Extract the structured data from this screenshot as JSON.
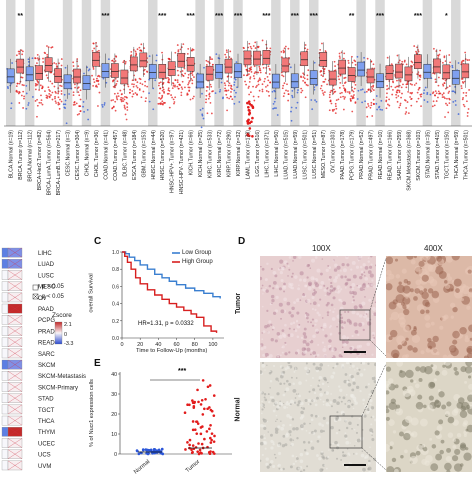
{
  "panelA": {
    "significance_marks": [
      "**",
      "***",
      "***",
      "***",
      "***",
      "***",
      "***",
      "***",
      "***",
      "**",
      "***",
      "***",
      "*"
    ],
    "sample_labels": [
      "BLCA.Normal (n=19)",
      "BRCA.Tumor (n=112)",
      "BRCA.Normal (n=112)",
      "BRCA-Her2.Tumor (n=82)",
      "BRCA-LumA.Tumor (n=564)",
      "BRCA-LumB.Tumor (n=217)",
      "CESC.Normal (n=3)",
      "CESC.Tumor (n=304)",
      "CHOL.Normal (n=9)",
      "CHOL.Tumor (n=36)",
      "COAD.Normal (n=41)",
      "COAD.Tumor (n=457)",
      "DLBC.Tumor (n=48)",
      "ESCA.Tumor (n=184)",
      "GBM.Tumor (n=153)",
      "HNSC.Normal (n=44)",
      "HNSC.Tumor (n=520)",
      "HNSC-HPV+.Tumor (n=97)",
      "HNSC-HPV-.Tumor (n=421)",
      "KICH.Tumor (n=66)",
      "KICH.Normal (n=25)",
      "KIRC.Tumor (n=533)",
      "KIRC.Normal (n=72)",
      "KIRP.Tumor (n=290)",
      "KIRP.Normal (n=32)",
      "LAML.Tumor (n=173)",
      "LGG.Tumor (n=516)",
      "LIHC.Tumor (n=371)",
      "LIHC.Normal (n=50)",
      "LUAD.Tumor (n=515)",
      "LUAD.Normal (n=59)",
      "LUSC.Tumor (n=501)",
      "LUSC.Normal (n=51)",
      "MESO.Tumor (n=87)",
      "OV.Tumor (n=303)",
      "PAAD.Tumor (n=178)",
      "PCPG.Tumor (n=179)",
      "PRAD.Normal (n=52)",
      "PRAD.Tumor (n=497)",
      "READ.Normal (n=10)",
      "READ.Tumor (n=166)",
      "SARC.Tumor (n=259)",
      "SKCM.Metastasis (n=368)",
      "SKCM.Tumor (n=103)",
      "STAD.Normal (n=35)",
      "STAD.Tumor (n=415)",
      "TGCT.Tumor (n=150)",
      "THCA.Normal (n=59)",
      "THCA.Tumor (n=501)"
    ]
  },
  "panelLeft": {
    "cancer_types": [
      "LIHC",
      "LUAD",
      "LUSC",
      "MESO",
      "OV",
      "PAAD",
      "PCPG",
      "PRAD",
      "READ",
      "SARC",
      "SKCM",
      "SKCM-Metastasis",
      "SKCM-Primary",
      "STAD",
      "TGCT",
      "THCA",
      "THYM",
      "UCEC",
      "UCS",
      "UVM"
    ],
    "legend_p_gt": "p > 0.05",
    "legend_p_le": "p < 0.05",
    "legend_title": "Zscore",
    "legend_max": "2.1",
    "legend_zero": "0",
    "legend_min": "-3.3"
  },
  "panelB": {
    "letter": "C",
    "legend_low": "Low Group",
    "legend_high": "High Group",
    "ylabel": "overall Survival",
    "xlabel": "Time to Follow-Up (months)",
    "hr_text": "HR=1.31, p = 0.0332",
    "x_ticks": [
      "0",
      "20",
      "40",
      "60",
      "80",
      "100"
    ],
    "y_ticks": [
      "0.0",
      "0.2",
      "0.4",
      "0.6",
      "0.8",
      "1.0"
    ],
    "colors": {
      "low": "#3a7fd0",
      "high": "#d71f1f"
    }
  },
  "panelE": {
    "letter": "E",
    "ylabel": "% of Nucr1 expression cells",
    "sig": "***",
    "categories": [
      "Normal",
      "Tumor"
    ],
    "y_ticks": [
      "0",
      "10",
      "20",
      "30",
      "40"
    ]
  },
  "panelD": {
    "letter": "D",
    "mag_low": "100X",
    "mag_high": "400X",
    "row_tumor": "Tumor",
    "row_normal": "Normal"
  }
}
